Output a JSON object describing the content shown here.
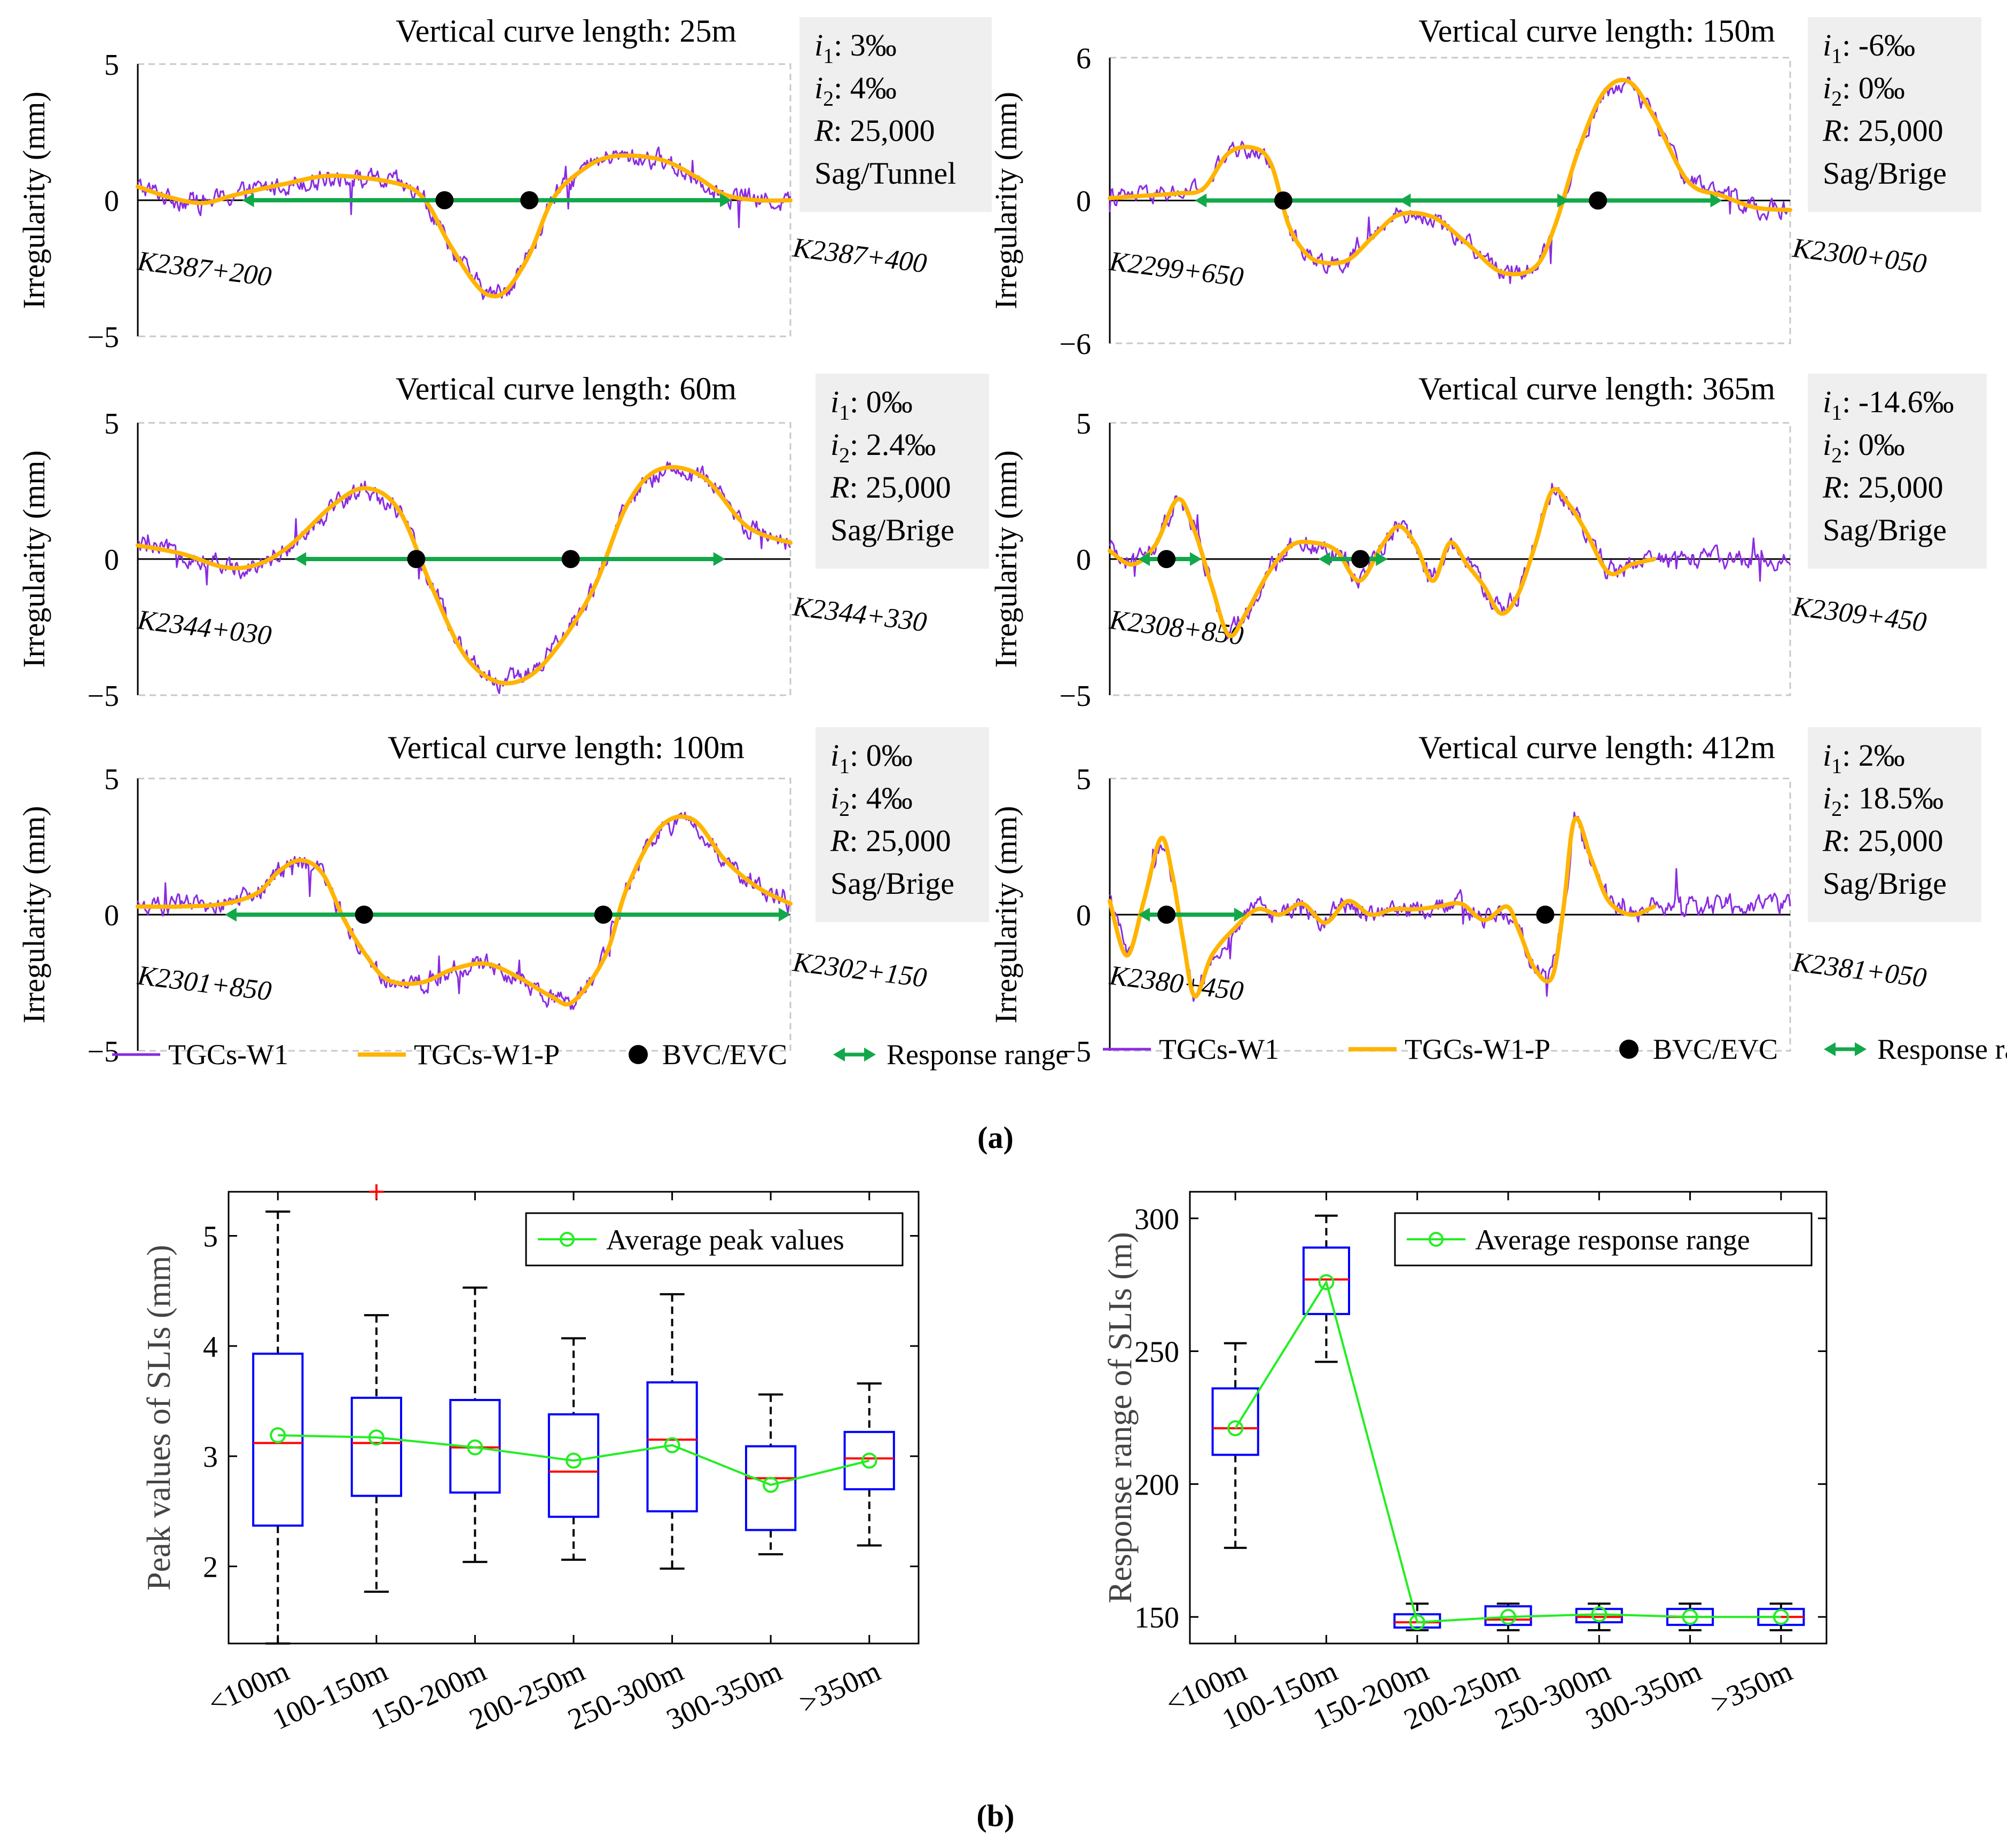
{
  "colors": {
    "w1": "#8a2be2",
    "w1p": "#ffb400",
    "bvc": "#000000",
    "range": "#12a84a",
    "box": "#0000ff",
    "median": "#ff0000",
    "outlier": "#ff0000",
    "avg": "#22ee22",
    "infobox": "#efefef",
    "grid": "#c8c8c8"
  },
  "panel_labels": {
    "a": "(a)",
    "b": "(b)"
  },
  "chart_data": [
    {
      "id": "L25",
      "type": "line",
      "title": "Vertical curve length: 25m",
      "ylabel": "Irregularity (mm)",
      "ylim": [
        -5,
        5
      ],
      "yticks": [
        "5",
        "0",
        "−5"
      ],
      "xlim": [
        0,
        200
      ],
      "start_label": "K2387+200",
      "end_label": "K2387+400",
      "info": {
        "i1": "3‰",
        "i2": "4‰",
        "R": "25,000",
        "type": "Sag/Tunnel"
      },
      "filtered": [
        [
          0,
          0.5
        ],
        [
          10,
          0.1
        ],
        [
          20,
          -0.1
        ],
        [
          30,
          0.2
        ],
        [
          45,
          0.6
        ],
        [
          60,
          0.9
        ],
        [
          80,
          0.6
        ],
        [
          88,
          0
        ],
        [
          95,
          -1.5
        ],
        [
          103,
          -3
        ],
        [
          108,
          -3.5
        ],
        [
          113,
          -3.3
        ],
        [
          120,
          -2
        ],
        [
          127,
          0
        ],
        [
          135,
          1
        ],
        [
          145,
          1.6
        ],
        [
          160,
          1.5
        ],
        [
          172,
          0.8
        ],
        [
          180,
          0.2
        ],
        [
          190,
          0
        ],
        [
          200,
          0
        ]
      ],
      "bvc": [
        94,
        120
      ],
      "range": [
        32,
        182
      ]
    },
    {
      "id": "L150",
      "type": "line",
      "title": "Vertical curve length: 150m",
      "ylabel": "Irregularity (mm)",
      "ylim": [
        -6,
        6
      ],
      "yticks": [
        "6",
        "0",
        "−6"
      ],
      "xlim": [
        0,
        400
      ],
      "start_label": "K2299+650",
      "end_label": "K2300+050",
      "info": {
        "i1": "-6‰",
        "i2": "0‰",
        "R": "25,000",
        "type": "Sag/Brige"
      },
      "filtered": [
        [
          0,
          0.1
        ],
        [
          20,
          0.2
        ],
        [
          40,
          0.3
        ],
        [
          55,
          0.5
        ],
        [
          70,
          2
        ],
        [
          85,
          2.2
        ],
        [
          95,
          1.5
        ],
        [
          105,
          -1
        ],
        [
          115,
          -2.2
        ],
        [
          125,
          -2.6
        ],
        [
          140,
          -2.5
        ],
        [
          155,
          -1.5
        ],
        [
          170,
          -0.6
        ],
        [
          190,
          -0.7
        ],
        [
          210,
          -1.8
        ],
        [
          230,
          -3
        ],
        [
          250,
          -2.8
        ],
        [
          262,
          -1
        ],
        [
          275,
          2
        ],
        [
          290,
          4.5
        ],
        [
          305,
          5
        ],
        [
          320,
          3.5
        ],
        [
          340,
          0.8
        ],
        [
          360,
          0.2
        ],
        [
          380,
          -0.3
        ],
        [
          400,
          -0.4
        ]
      ],
      "bvc": [
        102,
        287
      ],
      "range": [
        50,
        270
      ],
      "range2": [
        170,
        360
      ]
    },
    {
      "id": "L60",
      "type": "line",
      "title": "Vertical curve length: 60m",
      "ylabel": "Irregularity (mm)",
      "ylim": [
        -5,
        5
      ],
      "yticks": [
        "5",
        "0",
        "−5"
      ],
      "xlim": [
        0,
        300
      ],
      "start_label": "K2344+030",
      "end_label": "K2344+330",
      "info": {
        "i1": "0‰",
        "i2": "2.4‰",
        "R": "25,000",
        "type": "Sag/Brige"
      },
      "filtered": [
        [
          0,
          0.5
        ],
        [
          20,
          0.2
        ],
        [
          40,
          -0.3
        ],
        [
          55,
          -0.2
        ],
        [
          70,
          0.5
        ],
        [
          90,
          2
        ],
        [
          105,
          2.6
        ],
        [
          120,
          1.8
        ],
        [
          135,
          -1
        ],
        [
          150,
          -3.5
        ],
        [
          165,
          -4.5
        ],
        [
          180,
          -4.3
        ],
        [
          195,
          -3
        ],
        [
          210,
          -1
        ],
        [
          225,
          2
        ],
        [
          240,
          3.3
        ],
        [
          260,
          3
        ],
        [
          280,
          1.2
        ],
        [
          300,
          0.6
        ]
      ],
      "bvc": [
        128,
        199
      ],
      "range": [
        72,
        270
      ]
    },
    {
      "id": "L365",
      "type": "line",
      "title": "Vertical curve length: 365m",
      "ylabel": "Irregularity (mm)",
      "ylim": [
        -5,
        5
      ],
      "yticks": [
        "5",
        "0",
        "−5"
      ],
      "xlim": [
        0,
        600
      ],
      "start_label": "K2308+850",
      "end_label": "K2309+450",
      "info": {
        "i1": "-14.6‰",
        "i2": "0‰",
        "R": "25,000",
        "type": "Sag/Brige"
      },
      "filtered": [
        [
          0,
          0.3
        ],
        [
          20,
          -0.2
        ],
        [
          40,
          0.5
        ],
        [
          60,
          2.2
        ],
        [
          75,
          1
        ],
        [
          90,
          -1
        ],
        [
          105,
          -2.8
        ],
        [
          120,
          -2
        ],
        [
          140,
          -0.5
        ],
        [
          160,
          0.5
        ],
        [
          180,
          0.6
        ],
        [
          200,
          0.3
        ],
        [
          220,
          -0.8
        ],
        [
          240,
          0.5
        ],
        [
          255,
          1.2
        ],
        [
          270,
          0.5
        ],
        [
          285,
          -0.8
        ],
        [
          300,
          0.6
        ],
        [
          315,
          -0.2
        ],
        [
          330,
          -1
        ],
        [
          345,
          -2
        ],
        [
          360,
          -1.3
        ],
        [
          375,
          0.5
        ],
        [
          390,
          2.5
        ],
        [
          405,
          2
        ],
        [
          420,
          1
        ],
        [
          440,
          -0.5
        ],
        [
          460,
          -0.2
        ],
        [
          480,
          0
        ]
      ],
      "bvc": [
        50,
        221
      ],
      "range": [
        25,
        81
      ],
      "range2": [
        184,
        245
      ]
    },
    {
      "id": "L100",
      "type": "line",
      "title": "Vertical curve length: 100m",
      "ylabel": "Irregularity (mm)",
      "ylim": [
        -5,
        5
      ],
      "yticks": [
        "5",
        "0",
        "−5"
      ],
      "xlim": [
        0,
        300
      ],
      "start_label": "K2301+850",
      "end_label": "K2302+150",
      "info": {
        "i1": "0‰",
        "i2": "4‰",
        "R": "25,000",
        "type": "Sag/Brige"
      },
      "filtered": [
        [
          0,
          0.3
        ],
        [
          20,
          0.3
        ],
        [
          40,
          0.4
        ],
        [
          55,
          0.8
        ],
        [
          65,
          1.6
        ],
        [
          75,
          2
        ],
        [
          85,
          1.5
        ],
        [
          95,
          -0.2
        ],
        [
          105,
          -1.5
        ],
        [
          115,
          -2.4
        ],
        [
          130,
          -2.5
        ],
        [
          145,
          -2
        ],
        [
          160,
          -1.8
        ],
        [
          175,
          -2.3
        ],
        [
          190,
          -3
        ],
        [
          200,
          -3.2
        ],
        [
          215,
          -1.5
        ],
        [
          225,
          1
        ],
        [
          240,
          3.2
        ],
        [
          255,
          3.5
        ],
        [
          270,
          2
        ],
        [
          285,
          1
        ],
        [
          300,
          0.4
        ]
      ],
      "bvc": [
        104,
        214
      ],
      "range": [
        40,
        300
      ]
    },
    {
      "id": "L412",
      "type": "line",
      "title": "Vertical curve length: 412m",
      "ylabel": "Irregularity (mm)",
      "ylim": [
        -5,
        5
      ],
      "yticks": [
        "5",
        "0",
        "−5"
      ],
      "xlim": [
        0,
        600
      ],
      "start_label": "K2380+450",
      "end_label": "K2381+050",
      "info": {
        "i1": "2‰",
        "i2": "18.5‰",
        "R": "25,000",
        "type": "Sag/Brige"
      },
      "filtered": [
        [
          0,
          0.5
        ],
        [
          15,
          -1.5
        ],
        [
          30,
          0.5
        ],
        [
          45,
          2.8
        ],
        [
          55,
          1.5
        ],
        [
          65,
          -1
        ],
        [
          75,
          -3
        ],
        [
          90,
          -1.5
        ],
        [
          110,
          -0.5
        ],
        [
          130,
          0.2
        ],
        [
          150,
          0
        ],
        [
          170,
          0.4
        ],
        [
          190,
          -0.3
        ],
        [
          210,
          0.5
        ],
        [
          230,
          0
        ],
        [
          250,
          0.2
        ],
        [
          270,
          0.2
        ],
        [
          290,
          0.3
        ],
        [
          310,
          0.4
        ],
        [
          330,
          -0.2
        ],
        [
          350,
          0.3
        ],
        [
          360,
          -0.5
        ],
        [
          375,
          -2
        ],
        [
          390,
          -2.3
        ],
        [
          400,
          0.2
        ],
        [
          410,
          3.5
        ],
        [
          425,
          2
        ],
        [
          440,
          0.5
        ],
        [
          460,
          0
        ],
        [
          480,
          0.3
        ]
      ],
      "bvc": [
        50,
        384
      ],
      "range": [
        25,
        120
      ]
    },
    {
      "id": "peak",
      "type": "box",
      "ylabel": "Peak values of SLIs (mm)",
      "ylim": [
        1.3,
        5.4
      ],
      "yticks": [
        2,
        3,
        4,
        5
      ],
      "categories": [
        "<100m",
        "100-150m",
        "150-200m",
        "200-250m",
        "250-300m",
        "300-350m",
        ">350m"
      ],
      "whisker_low": [
        1.3,
        1.77,
        2.04,
        2.06,
        1.98,
        2.11,
        2.19
      ],
      "q1": [
        2.37,
        2.64,
        2.67,
        2.45,
        2.5,
        2.33,
        2.7
      ],
      "median": [
        3.12,
        3.12,
        3.08,
        2.86,
        3.15,
        2.8,
        2.98
      ],
      "q3": [
        3.93,
        3.53,
        3.51,
        3.38,
        3.67,
        3.09,
        3.22
      ],
      "whisker_high": [
        5.22,
        4.28,
        4.53,
        4.07,
        4.47,
        3.56,
        3.66
      ],
      "outliers": [
        [
          1,
          5.4
        ]
      ],
      "average": [
        3.19,
        3.17,
        3.08,
        2.96,
        3.1,
        2.74,
        2.96
      ],
      "legend": "Average peak values"
    },
    {
      "id": "range",
      "type": "box",
      "ylabel": "Response range of SLIs (m)",
      "ylim": [
        140,
        310
      ],
      "yticks": [
        150,
        200,
        250,
        300
      ],
      "categories": [
        "<100m",
        "100-150m",
        "150-200m",
        "200-250m",
        "250-300m",
        "300-350m",
        ">350m"
      ],
      "whisker_low": [
        176,
        246,
        145,
        145,
        145,
        145,
        145
      ],
      "q1": [
        211,
        264,
        146,
        147,
        148,
        147,
        147
      ],
      "median": [
        221,
        277,
        148,
        149,
        150,
        150,
        150
      ],
      "q3": [
        236,
        289,
        151,
        154,
        153,
        153,
        153
      ],
      "whisker_high": [
        253,
        301,
        155,
        155,
        155,
        155,
        155
      ],
      "outliers": [],
      "average": [
        221,
        276,
        148,
        150,
        151,
        150,
        150
      ],
      "legend": "Average response range"
    }
  ],
  "legend_a": {
    "w1": "TGCs-W1",
    "w1p": "TGCs-W1-P",
    "bvc": "BVC/EVC",
    "range": "Response range"
  }
}
